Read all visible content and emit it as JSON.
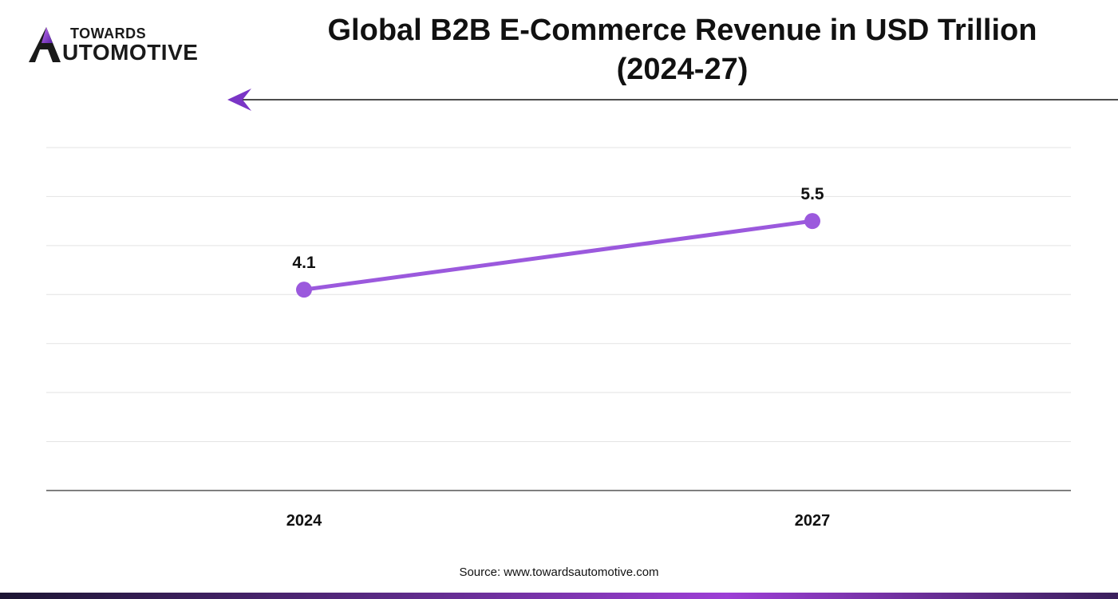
{
  "logo": {
    "top_text": "TOWARDS",
    "bottom_text": "UTOMOTIVE",
    "mark_icon": "towards-automotive-a-logo-mark"
  },
  "header": {
    "title_line1": "Global B2B E-Commerce Revenue in USD Trillion",
    "title_line2": "(2024-27)"
  },
  "colors": {
    "accent": "#9b59dd",
    "accent_dark": "#6a2fb5",
    "grid": "#e3e3e3",
    "axis": "#555555"
  },
  "chart_data": {
    "type": "line",
    "categories": [
      "2024",
      "2027"
    ],
    "series": [
      {
        "values": [
          4.1,
          5.5
        ]
      }
    ],
    "data_labels": [
      "4.1",
      "5.5"
    ],
    "ylim": [
      0,
      7
    ],
    "grid": true,
    "legend": "none",
    "xlabel": "",
    "ylabel": ""
  },
  "footer": {
    "source": "Source: www.towardsautomotive.com"
  }
}
